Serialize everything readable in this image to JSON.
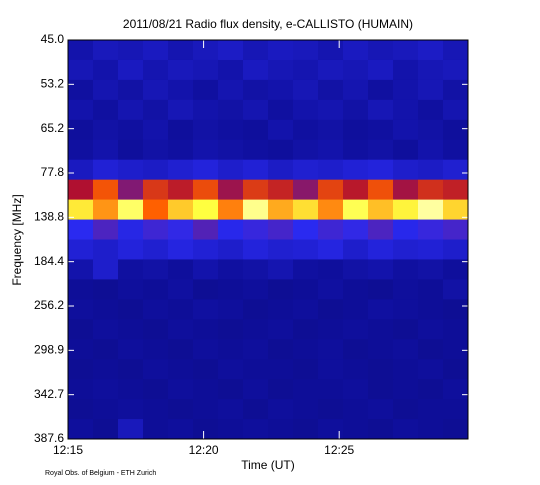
{
  "chart_data": {
    "type": "spectrogram",
    "title": "2011/08/21  Radio flux density, e-CALLISTO (HUMAIN)",
    "y_label": "Frequency [MHz]",
    "x_label": "Time (UT)",
    "footer": "Royal Obs. of Belgium - ETH Zurich",
    "y_labels": [
      "45.0",
      "53.2",
      "65.2",
      "77.8",
      "138.8",
      "184.4",
      "256.2",
      "298.9",
      "342.7",
      "387.6"
    ],
    "xlim": [
      "12:15",
      "12:29:45"
    ],
    "xticks": [
      "12:15",
      "12:20",
      "12:25"
    ],
    "z": [
      [
        22,
        25,
        24,
        26,
        23,
        25,
        27,
        24,
        26,
        25,
        23,
        26,
        24,
        25,
        27,
        24
      ],
      [
        24,
        22,
        26,
        23,
        25,
        24,
        22,
        26,
        24,
        23,
        25,
        24,
        26,
        22,
        24,
        25
      ],
      [
        20,
        23,
        21,
        24,
        22,
        20,
        23,
        21,
        22,
        24,
        21,
        23,
        20,
        22,
        24,
        21
      ],
      [
        22,
        20,
        23,
        21,
        24,
        22,
        21,
        23,
        20,
        22,
        23,
        21,
        24,
        22,
        20,
        23
      ],
      [
        19,
        21,
        20,
        22,
        19,
        21,
        20,
        19,
        22,
        20,
        21,
        19,
        20,
        22,
        21,
        19
      ],
      [
        20,
        22,
        19,
        21,
        20,
        22,
        21,
        20,
        19,
        21,
        22,
        20,
        21,
        19,
        22,
        20
      ],
      [
        26,
        30,
        28,
        27,
        29,
        31,
        28,
        30,
        27,
        29,
        28,
        30,
        31,
        28,
        27,
        29
      ],
      [
        55,
        72,
        48,
        65,
        58,
        70,
        52,
        66,
        60,
        49,
        68,
        57,
        71,
        53,
        63,
        59
      ],
      [
        88,
        80,
        92,
        75,
        85,
        90,
        78,
        94,
        82,
        87,
        79,
        91,
        84,
        89,
        95,
        86
      ],
      [
        35,
        40,
        33,
        38,
        36,
        41,
        34,
        37,
        39,
        35,
        38,
        36,
        40,
        34,
        37,
        39
      ],
      [
        30,
        28,
        31,
        29,
        32,
        30,
        28,
        31,
        29,
        30,
        32,
        28,
        31,
        29,
        30,
        28
      ],
      [
        22,
        28,
        20,
        21,
        19,
        22,
        20,
        21,
        23,
        20,
        19,
        21,
        22,
        20,
        21,
        19
      ],
      [
        18,
        17,
        19,
        18,
        20,
        17,
        18,
        19,
        17,
        18,
        20,
        18,
        17,
        19,
        18,
        21
      ],
      [
        19,
        18,
        17,
        19,
        18,
        20,
        19,
        17,
        18,
        19,
        17,
        18,
        20,
        19,
        18,
        17
      ],
      [
        17,
        19,
        18,
        17,
        19,
        18,
        17,
        18,
        19,
        17,
        18,
        19,
        18,
        17,
        19,
        18
      ],
      [
        18,
        17,
        19,
        18,
        17,
        19,
        18,
        19,
        17,
        18,
        19,
        17,
        18,
        19,
        17,
        18
      ],
      [
        17,
        18,
        17,
        19,
        18,
        17,
        19,
        18,
        18,
        17,
        19,
        18,
        17,
        18,
        19,
        17
      ],
      [
        18,
        19,
        18,
        17,
        19,
        18,
        17,
        19,
        17,
        18,
        18,
        19,
        17,
        18,
        17,
        19
      ],
      [
        17,
        18,
        19,
        18,
        17,
        18,
        19,
        17,
        19,
        18,
        17,
        18,
        19,
        17,
        18,
        18
      ],
      [
        19,
        17,
        25,
        18,
        19,
        17,
        18,
        19,
        18,
        17,
        19,
        18,
        17,
        19,
        18,
        17
      ]
    ]
  }
}
